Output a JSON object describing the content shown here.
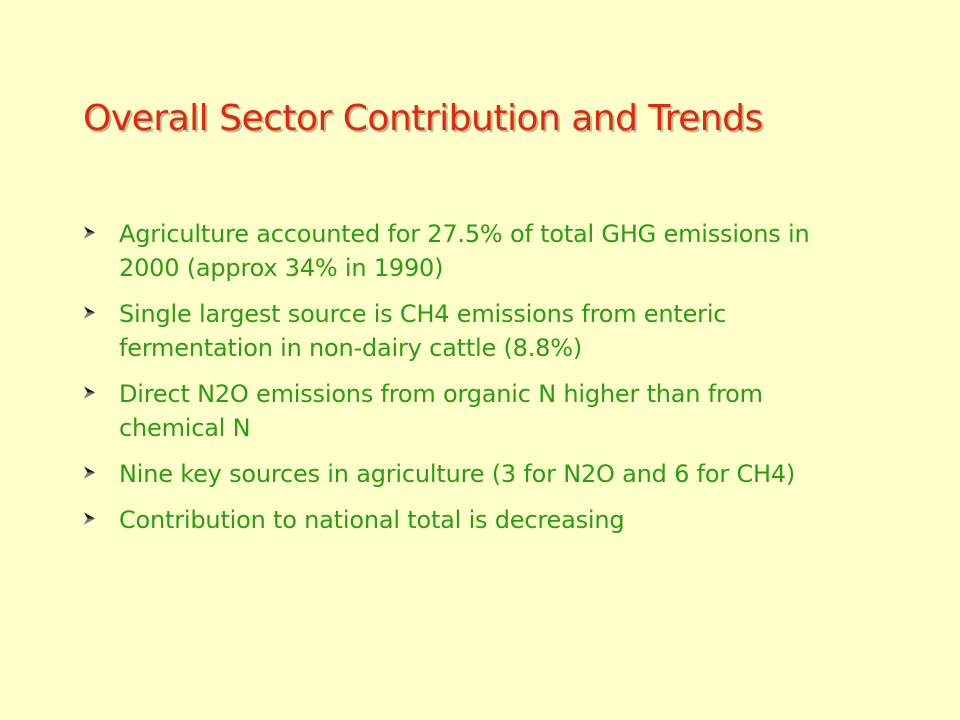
{
  "slide": {
    "title": "Overall Sector Contribution and Trends",
    "bullet_icon": "arrowhead-bullet-icon",
    "colors": {
      "background": "#ffffc9",
      "title": "#e0280f",
      "text": "#2a9d12",
      "bullet": "#1a1a1a"
    },
    "bullets": [
      {
        "text": "Agriculture accounted for 27.5% of total GHG emissions in 2000 (approx 34% in 1990)"
      },
      {
        "text": "Single largest source is CH4 emissions from enteric fermentation in non-dairy cattle (8.8%)"
      },
      {
        "text": "Direct N2O emissions from organic N higher than from chemical N"
      },
      {
        "text": "Nine key sources in agriculture (3 for N2O and 6 for CH4)"
      },
      {
        "text": "Contribution to national total is decreasing"
      }
    ]
  }
}
